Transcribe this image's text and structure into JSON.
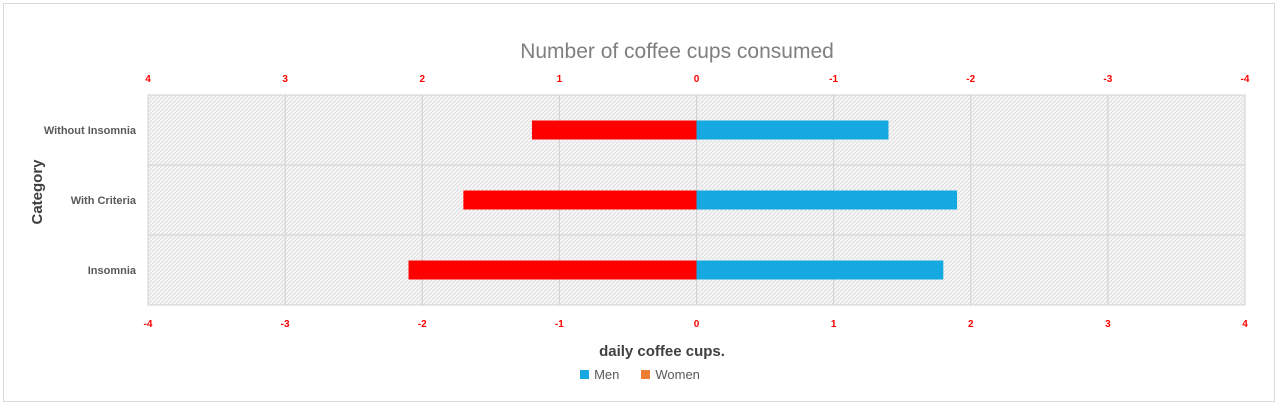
{
  "chart_data": {
    "type": "bar",
    "orientation": "horizontal",
    "title": "Number of coffee cups consumed",
    "xlabel": "daily coffee cups.",
    "ylabel": "Category",
    "categories": [
      "Without Insomnia",
      "With Criteria",
      "Insomnia"
    ],
    "series": [
      {
        "name": "Men",
        "color": "#16a8e0",
        "values": [
          1.4,
          1.9,
          1.8
        ]
      },
      {
        "name": "Women",
        "color": "#ff0000",
        "values": [
          -1.2,
          -1.7,
          -2.1
        ]
      }
    ],
    "legend_swatch_colors": [
      "#16a8e0",
      "#ed7d31"
    ],
    "xlim": [
      -4,
      4
    ],
    "bottom_ticks": [
      "-4",
      "-3",
      "-2",
      "-1",
      "0",
      "1",
      "2",
      "3",
      "4"
    ],
    "top_ticks": [
      "4",
      "3",
      "2",
      "1",
      "0",
      "-1",
      "-2",
      "-3",
      "-4"
    ],
    "tick_color": "#ff0000",
    "grid": true,
    "legend_position": "bottom"
  }
}
